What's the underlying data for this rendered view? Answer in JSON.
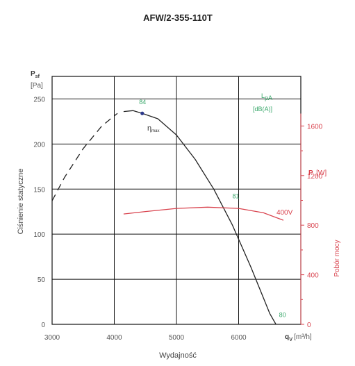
{
  "chart_data": {
    "type": "line",
    "title": "AFW/2-355-110T",
    "xlabel": "Wydajność",
    "x_unit_symbol": "q",
    "x_unit_sub": "v",
    "x_unit": "[m³/h]",
    "xlim": [
      3000,
      4000
    ],
    "xlim_full": [
      3000,
      7000
    ],
    "xticks": [
      "3000",
      "4000",
      "5000",
      "6000"
    ],
    "ylabel": "Ciśnienie statyczne",
    "y_unit_symbol": "P",
    "y_unit_sub": "sf",
    "y_unit": "[Pa]",
    "ylim": [
      0,
      275
    ],
    "yticks": [
      "0",
      "50",
      "100",
      "150",
      "200",
      "250"
    ],
    "y2label": "Pobór mocy",
    "y2_unit_symbol": "P",
    "y2_unit": "[W]",
    "y2lim": [
      0,
      2000
    ],
    "y2ticks": [
      "0",
      "400",
      "800",
      "1200",
      "1600"
    ],
    "sound_label": "L",
    "sound_sub": "pA",
    "sound_unit": "[dB(A)]",
    "eta_label": "η",
    "eta_sub": "max",
    "eta_point": {
      "x": 4450,
      "y": 234
    },
    "series": [
      {
        "role": "pressure-stall",
        "style": "dashed",
        "color": "#222222",
        "x": [
          3000,
          3200,
          3500,
          3800,
          4050
        ],
        "y": [
          137,
          163,
          195,
          220,
          234
        ]
      },
      {
        "role": "pressure",
        "style": "solid",
        "color": "#222222",
        "x": [
          4150,
          4300,
          4450,
          4700,
          5000,
          5300,
          5600,
          5900,
          6200,
          6500,
          6600
        ],
        "y": [
          236,
          237,
          234,
          228,
          210,
          183,
          150,
          110,
          63,
          12,
          0
        ]
      },
      {
        "name": "400V",
        "role": "power",
        "axis": "y2",
        "color": "#d9434e",
        "x": [
          4150,
          4500,
          5000,
          5500,
          6000,
          6400,
          6720
        ],
        "y": [
          890,
          910,
          935,
          945,
          935,
          900,
          840
        ]
      }
    ],
    "annotations": [
      {
        "text": "84",
        "x": 4400,
        "y": 244,
        "color": "#3aa86b"
      },
      {
        "text": "81",
        "x": 5900,
        "y": 140,
        "color": "#3aa86b"
      },
      {
        "text": "80",
        "x": 6650,
        "y": 8,
        "color": "#3aa86b"
      }
    ],
    "grid": true
  }
}
